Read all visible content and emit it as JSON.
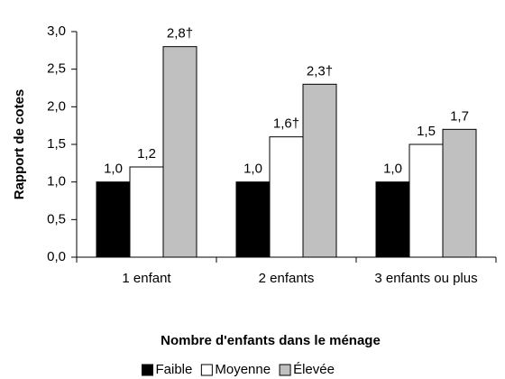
{
  "chart_data": {
    "type": "bar",
    "y_label": "Rapport de cotes",
    "x_label": "Nombre d'enfants dans le ménage",
    "categories": [
      "1 enfant",
      "2 enfants",
      "3 enfants ou plus"
    ],
    "series": [
      {
        "name": "Faible",
        "color": "#000000",
        "values": [
          1.0,
          1.0,
          1.0
        ],
        "value_labels": [
          "1,0",
          "1,0",
          "1,0"
        ]
      },
      {
        "name": "Moyenne",
        "color": "#ffffff",
        "values": [
          1.2,
          1.6,
          1.5
        ],
        "value_labels": [
          "1,2",
          "1,6†",
          "1,5"
        ]
      },
      {
        "name": "Élevée",
        "color": "#c0c0c0",
        "values": [
          2.8,
          2.3,
          1.7
        ],
        "value_labels": [
          "2,8†",
          "2,3†",
          "1,7"
        ]
      }
    ],
    "ylim": [
      0,
      3
    ],
    "yticks": [
      {
        "value": 0,
        "label": "0,0"
      },
      {
        "value": 0.5,
        "label": "0,5"
      },
      {
        "value": 1,
        "label": "1,0"
      },
      {
        "value": 1.5,
        "label": "1,5"
      },
      {
        "value": 2,
        "label": "2,0"
      },
      {
        "value": 2.5,
        "label": "2,5"
      },
      {
        "value": 3,
        "label": "3,0"
      }
    ],
    "grid": false,
    "legend": "bottom"
  }
}
